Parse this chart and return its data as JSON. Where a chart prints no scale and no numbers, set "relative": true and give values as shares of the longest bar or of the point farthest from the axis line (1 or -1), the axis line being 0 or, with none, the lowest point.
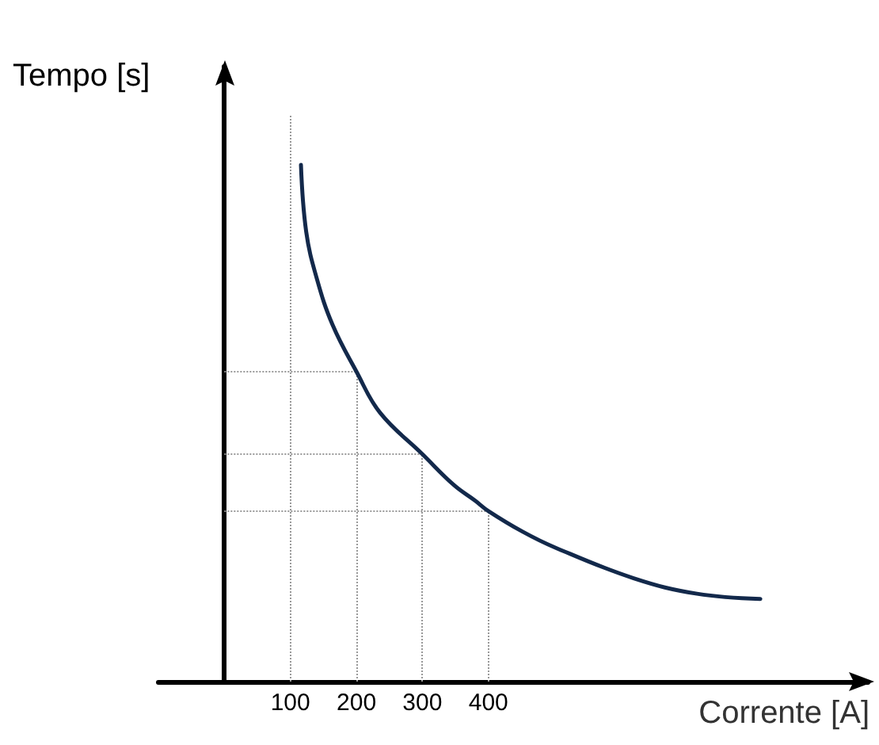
{
  "chart_data": {
    "type": "line",
    "relative": true,
    "xlabel": "Corrente [A]",
    "ylabel": "Tempo [s]",
    "xlim": [
      -100,
      975
    ],
    "xticks": [
      100,
      200,
      300,
      400
    ],
    "tick_labels": "x",
    "series": [
      {
        "color": "#13294b",
        "x": [
          116,
          124,
          140,
          164,
          200,
          236,
          300,
          348,
          380,
          400,
          452,
          500,
          620,
          716,
          812
        ],
        "values": [
          1.0,
          0.87,
          0.78,
          0.69,
          0.6,
          0.52,
          0.44,
          0.38,
          0.35,
          0.33,
          0.29,
          0.26,
          0.2,
          0.17,
          0.16
        ]
      }
    ],
    "ref_lines": [
      {
        "axis": "x",
        "value": 100,
        "color": "#999999",
        "line_style": "dotted"
      },
      {
        "axis": "x",
        "value": 200,
        "color": "#999999",
        "line_style": "dotted"
      },
      {
        "axis": "x",
        "value": 300,
        "color": "#999999",
        "line_style": "dotted"
      },
      {
        "axis": "x",
        "value": 400,
        "color": "#999999",
        "line_style": "dotted"
      },
      {
        "axis": "y",
        "value": 0.6,
        "color": "#999999",
        "line_style": "dotted"
      },
      {
        "axis": "y",
        "value": 0.44,
        "color": "#999999",
        "line_style": "dotted"
      },
      {
        "axis": "y",
        "value": 0.33,
        "color": "#999999",
        "line_style": "dotted"
      }
    ]
  }
}
